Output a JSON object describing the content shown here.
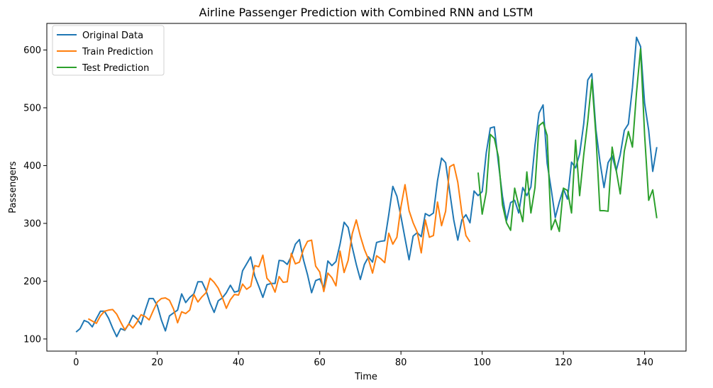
{
  "chart_data": {
    "type": "line",
    "title": "Airline Passenger Prediction with Combined RNN and LSTM",
    "xlabel": "Time",
    "ylabel": "Passengers",
    "xlim": [
      -7.2,
      150.2
    ],
    "ylim": [
      79,
      646
    ],
    "xticks": [
      0,
      20,
      40,
      60,
      80,
      100,
      120,
      140
    ],
    "yticks": [
      100,
      200,
      300,
      400,
      500,
      600
    ],
    "grid": false,
    "legend_position": "top-left",
    "series": [
      {
        "name": "Original Data",
        "color": "#1f77b4",
        "x_start": 0,
        "values": [
          112,
          118,
          132,
          129,
          121,
          135,
          148,
          148,
          136,
          119,
          104,
          118,
          115,
          126,
          141,
          135,
          125,
          149,
          170,
          170,
          158,
          133,
          114,
          140,
          145,
          150,
          178,
          163,
          172,
          178,
          199,
          199,
          184,
          162,
          146,
          166,
          171,
          180,
          193,
          181,
          183,
          218,
          230,
          242,
          209,
          191,
          172,
          194,
          196,
          196,
          236,
          235,
          229,
          243,
          264,
          272,
          237,
          211,
          180,
          201,
          204,
          188,
          235,
          227,
          234,
          264,
          302,
          293,
          259,
          229,
          203,
          229,
          242,
          233,
          267,
          269,
          270,
          315,
          364,
          347,
          312,
          274,
          237,
          278,
          284,
          277,
          317,
          313,
          318,
          374,
          413,
          405,
          355,
          306,
          271,
          306,
          315,
          301,
          356,
          348,
          355,
          422,
          465,
          467,
          404,
          347,
          305,
          336,
          340,
          318,
          362,
          348,
          363,
          435,
          491,
          505,
          404,
          359,
          310,
          337,
          360,
          342,
          406,
          396,
          420,
          472,
          548,
          559,
          463,
          407,
          362,
          405,
          417,
          391,
          419,
          461,
          472,
          535,
          622,
          606,
          508,
          461,
          390,
          432
        ]
      },
      {
        "name": "Train Prediction",
        "color": "#ff7f0e",
        "x_start": 3,
        "values": [
          135,
          131,
          127,
          140,
          148,
          150,
          151,
          143,
          129,
          116,
          126,
          119,
          129,
          142,
          139,
          133,
          149,
          164,
          170,
          171,
          167,
          152,
          128,
          147,
          144,
          150,
          177,
          164,
          173,
          180,
          205,
          198,
          188,
          172,
          153,
          168,
          177,
          176,
          195,
          186,
          191,
          227,
          225,
          245,
          205,
          197,
          181,
          208,
          198,
          199,
          248,
          230,
          233,
          255,
          269,
          271,
          226,
          216,
          182,
          214,
          206,
          192,
          252,
          215,
          236,
          282,
          306,
          278,
          255,
          238,
          214,
          244,
          239,
          232,
          283,
          264,
          276,
          329,
          367,
          322,
          301,
          285,
          249,
          306,
          276,
          279,
          337,
          296,
          321,
          398,
          402,
          371,
          318,
          279,
          268
        ]
      },
      {
        "name": "Test Prediction",
        "color": "#2ca02c",
        "x_start": 99,
        "values": [
          388,
          316,
          354,
          454,
          447,
          415,
          332,
          301,
          288,
          361,
          331,
          303,
          389,
          318,
          362,
          469,
          475,
          452,
          289,
          307,
          286,
          361,
          357,
          318,
          444,
          348,
          418,
          477,
          549,
          453,
          322,
          322,
          321,
          432,
          392,
          351,
          425,
          459,
          432,
          526,
          602,
          453,
          340,
          358,
          309
        ]
      }
    ]
  }
}
